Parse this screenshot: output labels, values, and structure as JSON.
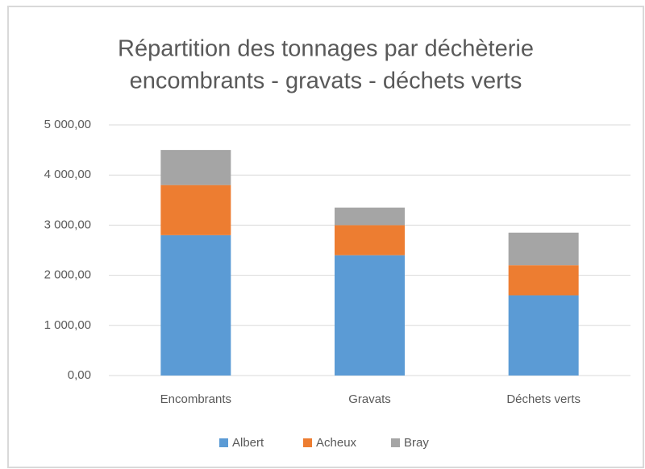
{
  "chart_data": {
    "type": "stacked_bar",
    "title": "Répartition des tonnages par déchèterie",
    "subtitle": "encombrants - gravats - déchets verts",
    "categories": [
      "Encombrants",
      "Gravats",
      "Déchets verts"
    ],
    "series": [
      {
        "name": "Albert",
        "color": "#5b9bd5",
        "values": [
          2800,
          2400,
          1600
        ]
      },
      {
        "name": "Acheux",
        "color": "#ed7d31",
        "values": [
          1000,
          600,
          600
        ]
      },
      {
        "name": "Bray",
        "color": "#a5a5a5",
        "values": [
          700,
          350,
          650
        ]
      }
    ],
    "ylim": [
      0,
      5000
    ],
    "yticks": [
      {
        "value": 0,
        "label": "0,00"
      },
      {
        "value": 1000,
        "label": "1 000,00"
      },
      {
        "value": 2000,
        "label": "2 000,00"
      },
      {
        "value": 3000,
        "label": "3 000,00"
      },
      {
        "value": 4000,
        "label": "4 000,00"
      },
      {
        "value": 5000,
        "label": "5 000,00"
      }
    ],
    "grid": true,
    "legend": "bottom"
  }
}
